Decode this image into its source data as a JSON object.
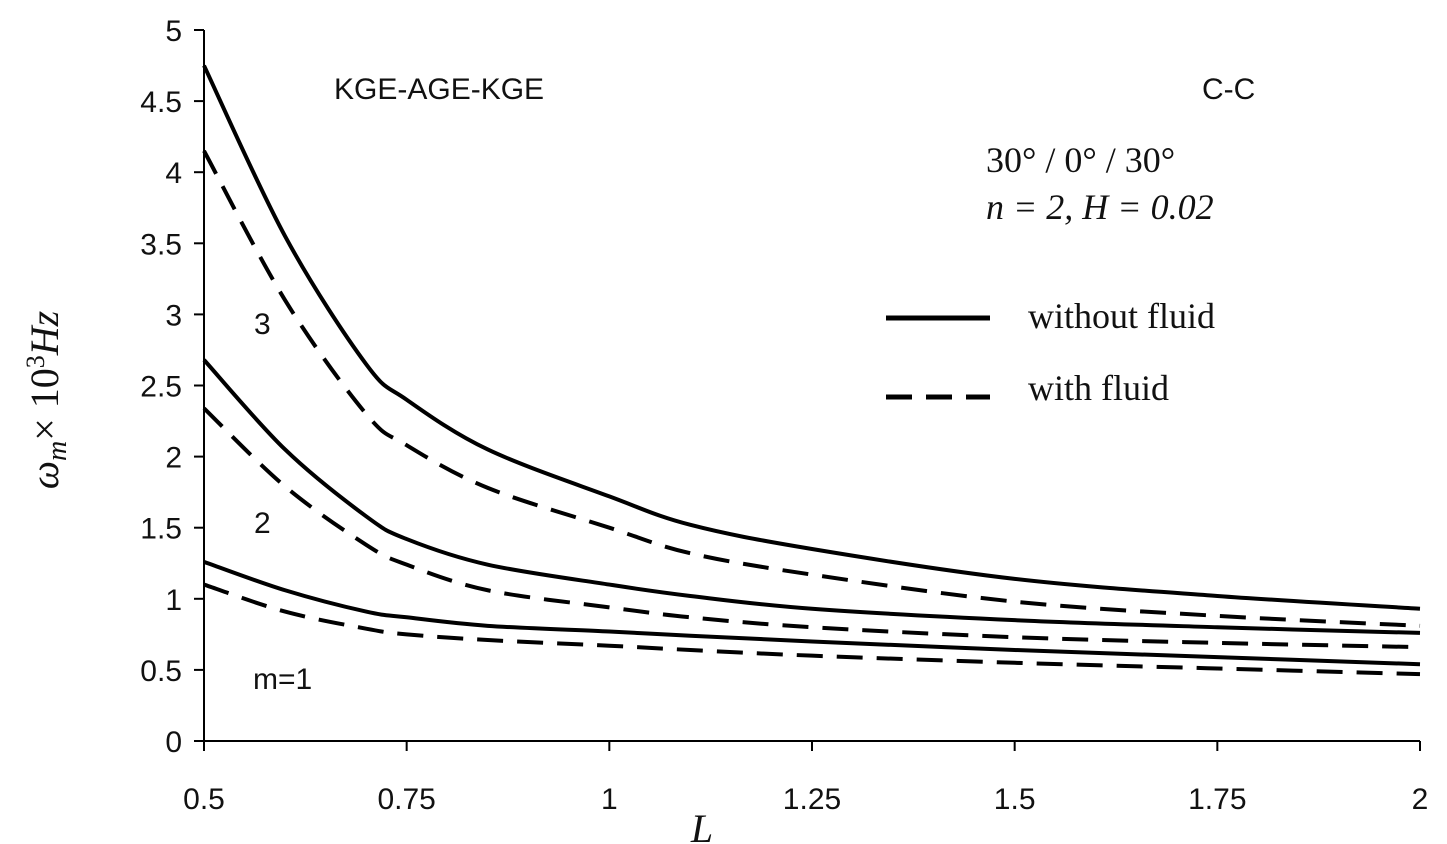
{
  "chart_data": {
    "type": "line",
    "title": "",
    "xlabel": "L",
    "ylabel": "ω_m × 10^3 Hz",
    "ylabel_parts": {
      "omega": "ω",
      "sub": "m",
      "times": "× 10",
      "exp": "3",
      "unit": "Hz"
    },
    "xlim": [
      0.5,
      2
    ],
    "ylim": [
      0,
      5
    ],
    "x_ticks": [
      {
        "value": 0.5,
        "label": "0.5"
      },
      {
        "value": 0.75,
        "label": "0.75"
      },
      {
        "value": 1,
        "label": "1"
      },
      {
        "value": 1.25,
        "label": "1.25"
      },
      {
        "value": 1.5,
        "label": "1.5"
      },
      {
        "value": 1.75,
        "label": "1.75"
      },
      {
        "value": 2,
        "label": "2"
      }
    ],
    "y_ticks": [
      {
        "value": 0,
        "label": "0"
      },
      {
        "value": 0.5,
        "label": "0.5"
      },
      {
        "value": 1,
        "label": "1"
      },
      {
        "value": 1.5,
        "label": "1.5"
      },
      {
        "value": 2,
        "label": "2"
      },
      {
        "value": 2.5,
        "label": "2.5"
      },
      {
        "value": 3,
        "label": "3"
      },
      {
        "value": 3.5,
        "label": "3.5"
      },
      {
        "value": 4,
        "label": "4"
      },
      {
        "value": 4.5,
        "label": "4.5"
      },
      {
        "value": 5,
        "label": "5"
      }
    ],
    "grid": false,
    "legend_position": "right",
    "legend": [
      {
        "label": "without fluid",
        "style": "solid"
      },
      {
        "label": "with fluid",
        "style": "dashed"
      }
    ],
    "series": [
      {
        "style": "solid",
        "mode": "3",
        "x": [
          0.5,
          0.6,
          0.7,
          0.75,
          0.85,
          1,
          1.1,
          1.25,
          1.5,
          1.75,
          2
        ],
        "y": [
          4.75,
          3.55,
          2.65,
          2.4,
          2.05,
          1.72,
          1.52,
          1.35,
          1.14,
          1.02,
          0.93
        ]
      },
      {
        "style": "dashed",
        "mode": "3",
        "x": [
          0.5,
          0.6,
          0.7,
          0.75,
          0.85,
          1,
          1.1,
          1.25,
          1.5,
          1.75,
          2
        ],
        "y": [
          4.15,
          3.1,
          2.3,
          2.08,
          1.78,
          1.5,
          1.32,
          1.17,
          0.98,
          0.88,
          0.81
        ]
      },
      {
        "style": "solid",
        "mode": "2",
        "x": [
          0.5,
          0.6,
          0.7,
          0.75,
          0.85,
          1,
          1.1,
          1.25,
          1.5,
          1.75,
          2
        ],
        "y": [
          2.68,
          2.05,
          1.58,
          1.42,
          1.24,
          1.1,
          1.02,
          0.93,
          0.85,
          0.8,
          0.76
        ]
      },
      {
        "style": "dashed",
        "mode": "2",
        "x": [
          0.5,
          0.6,
          0.7,
          0.75,
          0.85,
          1,
          1.1,
          1.25,
          1.5,
          1.75,
          2
        ],
        "y": [
          2.34,
          1.79,
          1.38,
          1.24,
          1.06,
          0.94,
          0.87,
          0.8,
          0.73,
          0.69,
          0.66
        ]
      },
      {
        "style": "solid",
        "mode": "1",
        "x": [
          0.5,
          0.6,
          0.7,
          0.75,
          0.85,
          1,
          1.1,
          1.25,
          1.5,
          1.75,
          2
        ],
        "y": [
          1.26,
          1.06,
          0.91,
          0.87,
          0.81,
          0.77,
          0.74,
          0.7,
          0.64,
          0.59,
          0.54
        ]
      },
      {
        "style": "dashed",
        "mode": "1",
        "x": [
          0.5,
          0.6,
          0.7,
          0.75,
          0.85,
          1,
          1.1,
          1.25,
          1.5,
          1.75,
          2
        ],
        "y": [
          1.1,
          0.91,
          0.79,
          0.75,
          0.71,
          0.67,
          0.64,
          0.6,
          0.55,
          0.51,
          0.47
        ]
      }
    ],
    "annotations": {
      "material": "KGE-AGE-KGE",
      "boundary": "C-C",
      "layup": "30° / 0° / 30°",
      "params": "n = 2,  H = 0.02",
      "mode_label_3": "3",
      "mode_label_2": "2",
      "mode_label_1": "m=1"
    }
  }
}
